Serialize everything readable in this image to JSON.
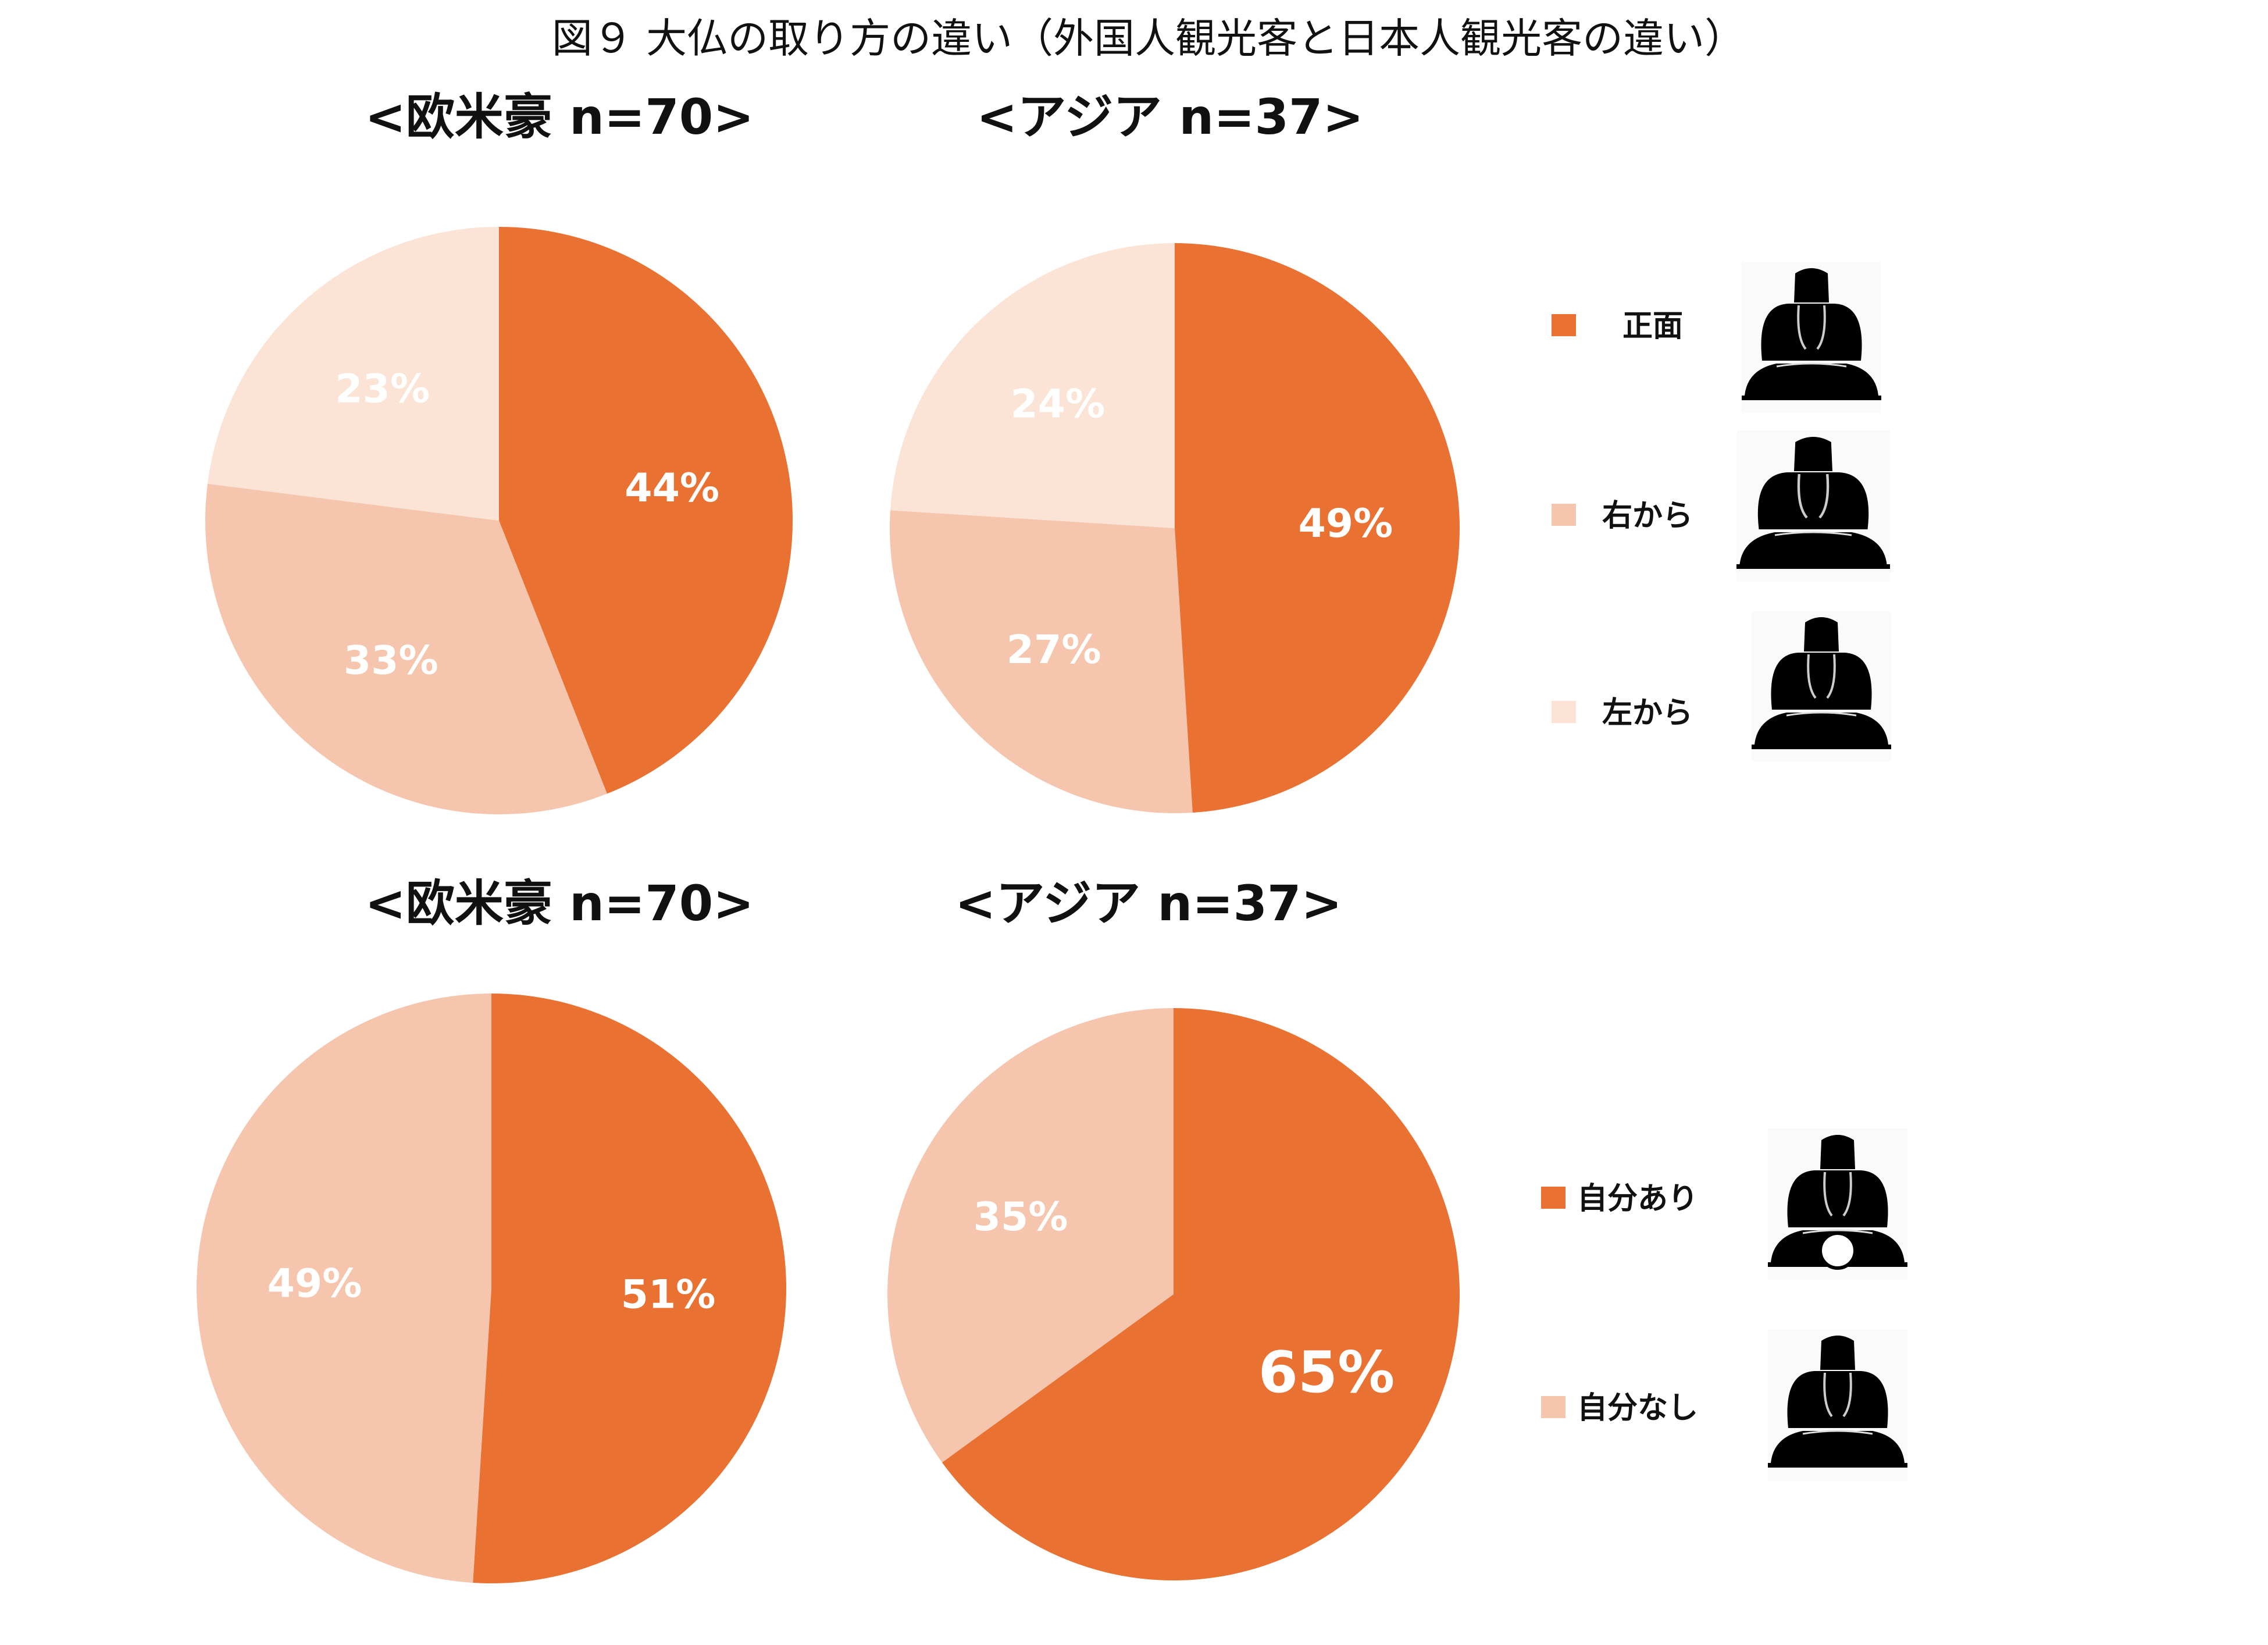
{
  "title": "図９ 大仏の取り方の違い（外国人観光客と日本人観光客の違い）",
  "colors": {
    "dark": "#E97132",
    "mid": "#F5C6AD",
    "light": "#FBE3D6"
  },
  "legends": [
    {
      "items": [
        {
          "label": "正面",
          "color": "#E97132",
          "icon": "buddha-front-icon"
        },
        {
          "label": "右から",
          "color": "#F5C6AD",
          "icon": "buddha-right-icon"
        },
        {
          "label": "左から",
          "color": "#FBE3D6",
          "icon": "buddha-left-icon"
        }
      ]
    },
    {
      "items": [
        {
          "label": "自分あり",
          "color": "#E97132",
          "icon": "buddha-with-self-icon"
        },
        {
          "label": "自分なし",
          "color": "#F5C6AD",
          "icon": "buddha-front-icon"
        }
      ]
    }
  ],
  "chart_data": [
    {
      "type": "pie",
      "title": "<欧米豪 n=70>",
      "categories": [
        "正面",
        "右から",
        "左から"
      ],
      "values": [
        44,
        33,
        23
      ],
      "colors": [
        "#E97132",
        "#F5C6AD",
        "#FBE3D6"
      ],
      "labels": [
        "44%",
        "33%",
        "23%"
      ]
    },
    {
      "type": "pie",
      "title": "<アジア n=37>",
      "categories": [
        "正面",
        "右から",
        "左から"
      ],
      "values": [
        49,
        27,
        24
      ],
      "colors": [
        "#E97132",
        "#F5C6AD",
        "#FBE3D6"
      ],
      "labels": [
        "49%",
        "27%",
        "24%"
      ]
    },
    {
      "type": "pie",
      "title": "<欧米豪 n=70>",
      "categories": [
        "自分あり",
        "自分なし"
      ],
      "values": [
        51,
        49
      ],
      "colors": [
        "#E97132",
        "#F5C6AD"
      ],
      "labels": [
        "51%",
        "49%"
      ]
    },
    {
      "type": "pie",
      "title": "<アジア n=37>",
      "categories": [
        "自分あり",
        "自分なし"
      ],
      "values": [
        65,
        35
      ],
      "colors": [
        "#E97132",
        "#F5C6AD"
      ],
      "labels": [
        "65%",
        "35%"
      ]
    }
  ]
}
